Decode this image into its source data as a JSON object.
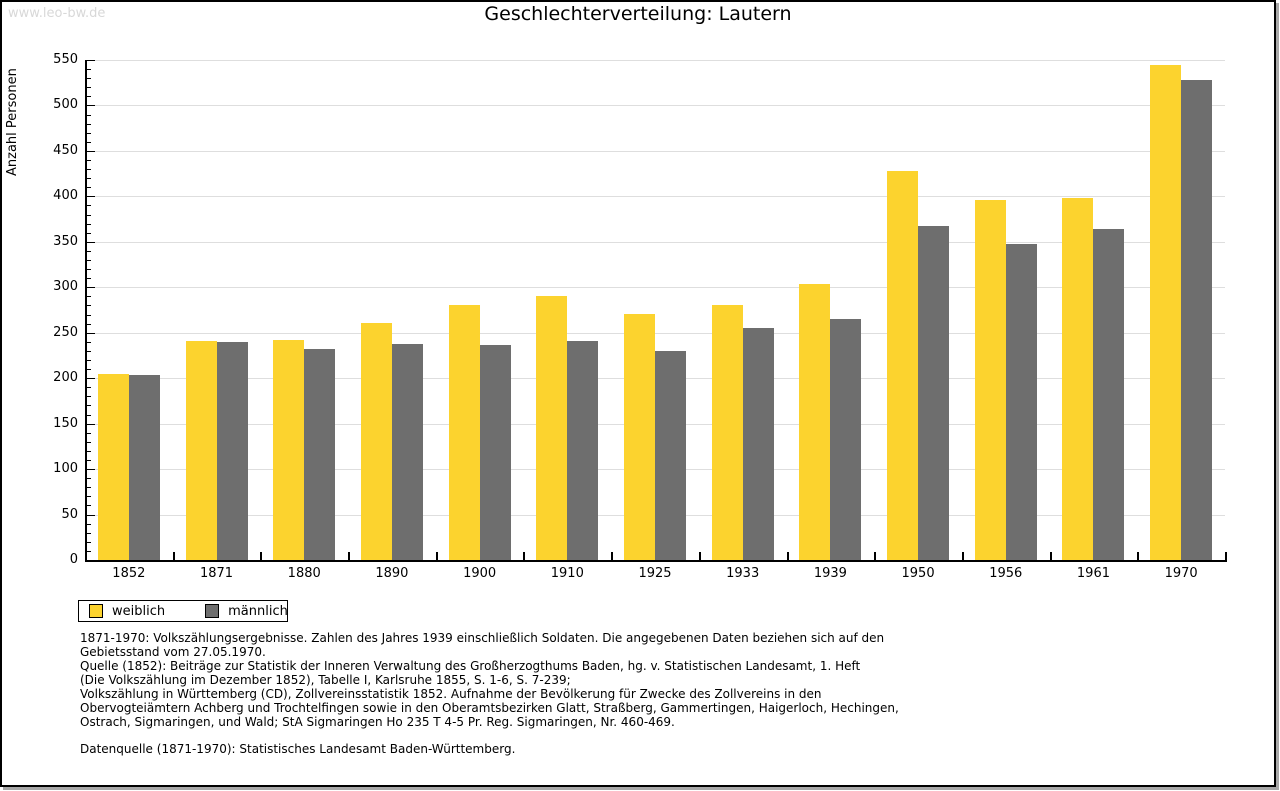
{
  "watermark": "www.leo-bw.de",
  "title": "Geschlechterverteilung: Lautern",
  "chart_data": {
    "type": "bar",
    "title": "Geschlechterverteilung: Lautern",
    "xlabel": "",
    "ylabel": "Anzahl Personen",
    "ylim": [
      0,
      550
    ],
    "ytick_step": 50,
    "y_minor_step": 10,
    "grid": true,
    "legend_position": "below-left",
    "categories": [
      "1852",
      "1871",
      "1880",
      "1890",
      "1900",
      "1910",
      "1925",
      "1933",
      "1939",
      "1950",
      "1956",
      "1961",
      "1970"
    ],
    "series": [
      {
        "name": "weiblich",
        "color": "#FCD32E",
        "values": [
          205,
          241,
          242,
          261,
          281,
          290,
          271,
          281,
          304,
          428,
          396,
          398,
          545
        ]
      },
      {
        "name": "männlich",
        "color": "#6E6E6E",
        "values": [
          203,
          240,
          232,
          238,
          237,
          241,
          230,
          255,
          265,
          367,
          348,
          364,
          528
        ]
      }
    ]
  },
  "legend": {
    "items": [
      {
        "label": "weiblich",
        "color": "#FCD32E"
      },
      {
        "label": "männlich",
        "color": "#6E6E6E"
      }
    ]
  },
  "footnotes": {
    "lines": [
      "1871-1970: Volkszählungsergebnisse. Zahlen des Jahres 1939 einschließlich Soldaten. Die angegebenen Daten beziehen sich auf den",
      "Gebietsstand vom 27.05.1970.",
      "Quelle (1852): Beiträge zur Statistik der Inneren Verwaltung des Großherzogthums Baden, hg. v. Statistischen Landesamt, 1. Heft",
      "(Die Volkszählung im Dezember 1852), Tabelle I, Karlsruhe 1855, S. 1-6, S. 7-239;",
      "Volkszählung in Württemberg (CD), Zollvereinsstatistik 1852. Aufnahme der Bevölkerung für Zwecke des Zollvereins in den",
      "Obervogteiämtern Achberg und Trochtelfingen sowie in den Oberamtsbezirken Glatt, Straßberg, Gammertingen, Haigerloch, Hechingen,",
      "Ostrach, Sigmaringen, und Wald; StA Sigmaringen Ho 235 T 4-5 Pr. Reg. Sigmaringen, Nr. 460-469."
    ],
    "source": "Datenquelle (1871-1970): Statistisches Landesamt Baden-Württemberg."
  },
  "colors": {
    "weiblich": "#FCD32E",
    "maennlich": "#6E6E6E",
    "gridline": "#DEDEDE",
    "axis": "#000000",
    "watermark": "#D8D8D8"
  }
}
